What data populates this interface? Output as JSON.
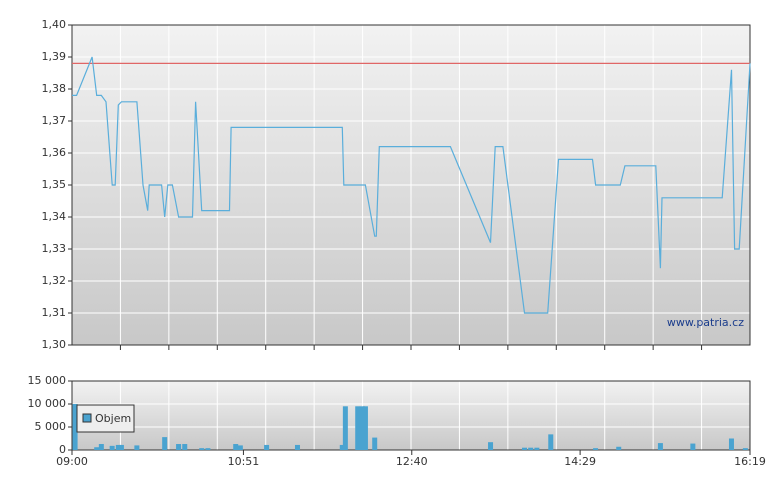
{
  "chart_data": [
    {
      "type": "line",
      "x": [
        "09:00",
        "09:03",
        "09:13",
        "09:16",
        "09:19",
        "09:22",
        "09:26",
        "09:28",
        "09:30",
        "09:32",
        "09:42",
        "09:46",
        "09:49",
        "09:50",
        "09:58",
        "10:00",
        "10:02",
        "10:05",
        "10:09",
        "10:18",
        "10:20",
        "10:24",
        "10:42",
        "10:43",
        "11:55",
        "11:56",
        "12:10",
        "12:16",
        "12:17",
        "12:19",
        "13:05",
        "13:31",
        "13:34",
        "13:39",
        "13:53",
        "14:08",
        "14:15",
        "14:37",
        "14:39",
        "14:55",
        "14:58",
        "15:18",
        "15:21",
        "15:22",
        "16:01",
        "16:07",
        "16:09",
        "16:12",
        "16:19"
      ],
      "values": [
        1.378,
        1.378,
        1.39,
        1.378,
        1.378,
        1.376,
        1.35,
        1.35,
        1.375,
        1.376,
        1.376,
        1.35,
        1.342,
        1.35,
        1.35,
        1.34,
        1.35,
        1.35,
        1.34,
        1.34,
        1.376,
        1.342,
        1.342,
        1.368,
        1.368,
        1.35,
        1.35,
        1.334,
        1.334,
        1.362,
        1.362,
        1.332,
        1.362,
        1.362,
        1.31,
        1.31,
        1.358,
        1.358,
        1.35,
        1.35,
        1.356,
        1.356,
        1.324,
        1.346,
        1.346,
        1.386,
        1.33,
        1.33,
        1.388
      ],
      "color": "#5aaedb",
      "xlim": [
        "09:00",
        "16:19"
      ],
      "ylim": [
        1.3,
        1.4
      ],
      "yticks": [
        {
          "value": 1.3,
          "label": "1,30"
        },
        {
          "value": 1.31,
          "label": "1,31"
        },
        {
          "value": 1.32,
          "label": "1,32"
        },
        {
          "value": 1.33,
          "label": "1,33"
        },
        {
          "value": 1.34,
          "label": "1,34"
        },
        {
          "value": 1.35,
          "label": "1,35"
        },
        {
          "value": 1.36,
          "label": "1,36"
        },
        {
          "value": 1.37,
          "label": "1,37"
        },
        {
          "value": 1.38,
          "label": "1,38"
        },
        {
          "value": 1.39,
          "label": "1,39"
        },
        {
          "value": 1.4,
          "label": "1,40"
        }
      ],
      "reference_line": {
        "value": 1.388,
        "color": "#e06666"
      },
      "watermark": "www.patria.cz",
      "grid": true
    },
    {
      "type": "bar",
      "x": [
        "09:02",
        "09:16",
        "09:19",
        "09:26",
        "09:30",
        "09:32",
        "09:42",
        "10:00",
        "10:09",
        "10:13",
        "10:24",
        "10:28",
        "10:46",
        "10:49",
        "11:06",
        "11:26",
        "11:55",
        "11:57",
        "12:05",
        "12:08",
        "12:10",
        "12:16",
        "13:31",
        "13:53",
        "13:57",
        "14:01",
        "14:10",
        "14:39",
        "14:54",
        "15:21",
        "15:42",
        "16:07",
        "16:16"
      ],
      "series": [
        {
          "name": "Objem",
          "color": "#4aa3d0",
          "values": [
            10000,
            600,
            1300,
            900,
            1100,
            1100,
            1000,
            2800,
            1300,
            1300,
            400,
            400,
            1300,
            1000,
            1100,
            1100,
            1100,
            9500,
            9500,
            9500,
            9500,
            2700,
            1700,
            500,
            500,
            500,
            3400,
            400,
            700,
            1500,
            1400,
            2500,
            400
          ]
        }
      ],
      "xlim": [
        "09:00",
        "16:19"
      ],
      "xticks": [
        "09:00",
        "10:51",
        "12:40",
        "14:29",
        "16:19"
      ],
      "ylim": [
        0,
        15000
      ],
      "yticks": [
        0,
        {
          "value": 5000,
          "label": "5 000"
        },
        {
          "value": 10000,
          "label": "10 000"
        },
        {
          "value": 15000,
          "label": "15 000"
        }
      ],
      "grid": true
    }
  ]
}
